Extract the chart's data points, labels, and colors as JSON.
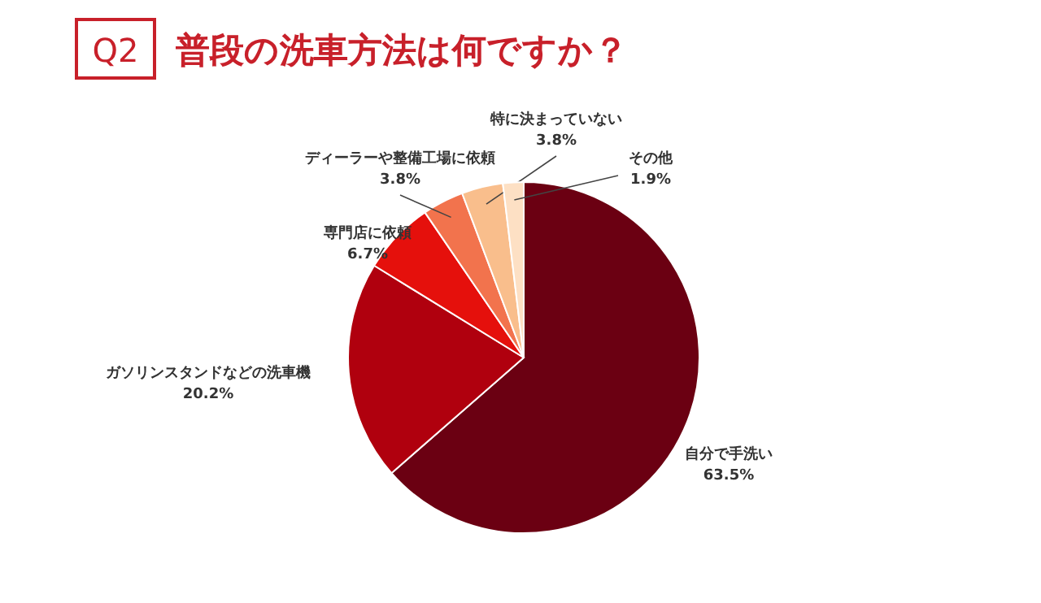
{
  "chart_data": {
    "type": "pie",
    "title": "普段の洗車方法は何ですか？",
    "annotations": [
      "Q2"
    ],
    "categories": [
      "自分で手洗い",
      "ガソリンスタンドなどの洗車機",
      "専門店に依頼",
      "ディーラーや整備工場に依頼",
      "特に決まっていない",
      "その他"
    ],
    "values": [
      63.5,
      20.2,
      6.7,
      3.8,
      3.8,
      1.9
    ],
    "colors": [
      "#6b0012",
      "#b0000e",
      "#e5100c",
      "#f2734d",
      "#f9be8c",
      "#fde0c4"
    ],
    "value_labels": [
      "63.5%",
      "20.2%",
      "6.7%",
      "3.8%",
      "3.8%",
      "1.9%"
    ]
  }
}
